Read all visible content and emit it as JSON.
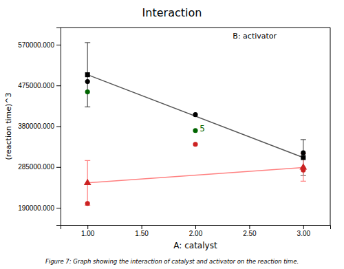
{
  "chart_data": {
    "type": "line",
    "title": "Interaction",
    "subtitle": "B: activator",
    "xlabel": "A: catalyst",
    "ylabel": "(reaction time)^3",
    "caption": "Figure 7: Graph showing the interaction of catalyst and activator on the reaction time.",
    "xlim": [
      0.75,
      3.25
    ],
    "ylim": [
      150000,
      610000
    ],
    "xticks": [
      {
        "value": 1.0,
        "label": "1.00"
      },
      {
        "value": 1.5,
        "label": "1.50"
      },
      {
        "value": 2.0,
        "label": "2.00"
      },
      {
        "value": 2.5,
        "label": "2.50"
      },
      {
        "value": 3.0,
        "label": "3.00"
      }
    ],
    "yticks": [
      {
        "value": 190000,
        "label": "190000.000"
      },
      {
        "value": 285000,
        "label": "285000.000"
      },
      {
        "value": 380000,
        "label": "380000.000"
      },
      {
        "value": 475000,
        "label": "475000.000"
      },
      {
        "value": 570000,
        "label": "570000.000"
      }
    ],
    "grid": false,
    "series": [
      {
        "type": "line",
        "color": "#555555",
        "x": [
          1.0,
          3.0
        ],
        "values": [
          500000,
          307000
        ],
        "errors": [
          75000,
          42000
        ]
      },
      {
        "type": "line",
        "color": "#FF8080",
        "x": [
          1.0,
          3.0
        ],
        "values": [
          248000,
          284000
        ],
        "errors": [
          52000,
          32000
        ]
      },
      {
        "type": "scatter",
        "marker": "square",
        "color": "#000000",
        "x": [
          1.0,
          3.0
        ],
        "values": [
          500000,
          307000
        ]
      },
      {
        "type": "scatter",
        "marker": "circle",
        "color": "#000000",
        "x": [
          1.0,
          2.0,
          3.0
        ],
        "values": [
          484000,
          407000,
          318000
        ]
      },
      {
        "type": "scatter",
        "marker": "circle",
        "color": "#006400",
        "x": [
          1.0,
          2.0,
          3.0
        ],
        "values": [
          460000,
          370000,
          282000
        ]
      },
      {
        "type": "scatter",
        "marker": "circle",
        "color": "#CC2222",
        "x": [
          1.0,
          2.0,
          3.0
        ],
        "values": [
          200000,
          338000,
          278000
        ]
      },
      {
        "type": "scatter",
        "marker": "triangle",
        "color": "#CC2222",
        "x": [
          1.0,
          3.0
        ],
        "values": [
          248000,
          284000
        ]
      }
    ],
    "annotations": [
      {
        "text": "5",
        "x": 2.02,
        "y": 368000,
        "color": "#006400"
      }
    ]
  }
}
